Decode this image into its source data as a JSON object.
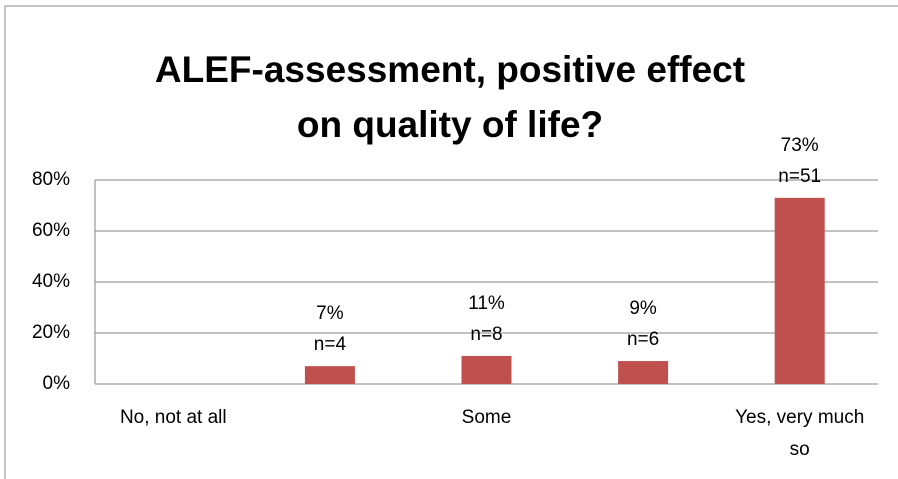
{
  "chart_data": {
    "type": "bar",
    "title": "ALEF-assessment, positive effect on quality of life?",
    "categories": [
      "No, not at all",
      null,
      "Some",
      null,
      "Yes, very much so"
    ],
    "values": [
      0,
      7,
      11,
      9,
      73
    ],
    "value_labels": [
      null,
      "7%",
      "11%",
      "9%",
      "73%"
    ],
    "counts": [
      null,
      4,
      8,
      6,
      51
    ],
    "count_labels": [
      null,
      "n=4",
      "n=8",
      "n=6",
      "n=51"
    ],
    "color": "#c0504d",
    "ylim": [
      0,
      80
    ],
    "yticks": [
      {
        "value": 0,
        "label": "0%"
      },
      {
        "value": 20,
        "label": "20%"
      },
      {
        "value": 40,
        "label": "40%"
      },
      {
        "value": 60,
        "label": "60%"
      },
      {
        "value": 80,
        "label": "80%"
      }
    ],
    "grid": true
  }
}
